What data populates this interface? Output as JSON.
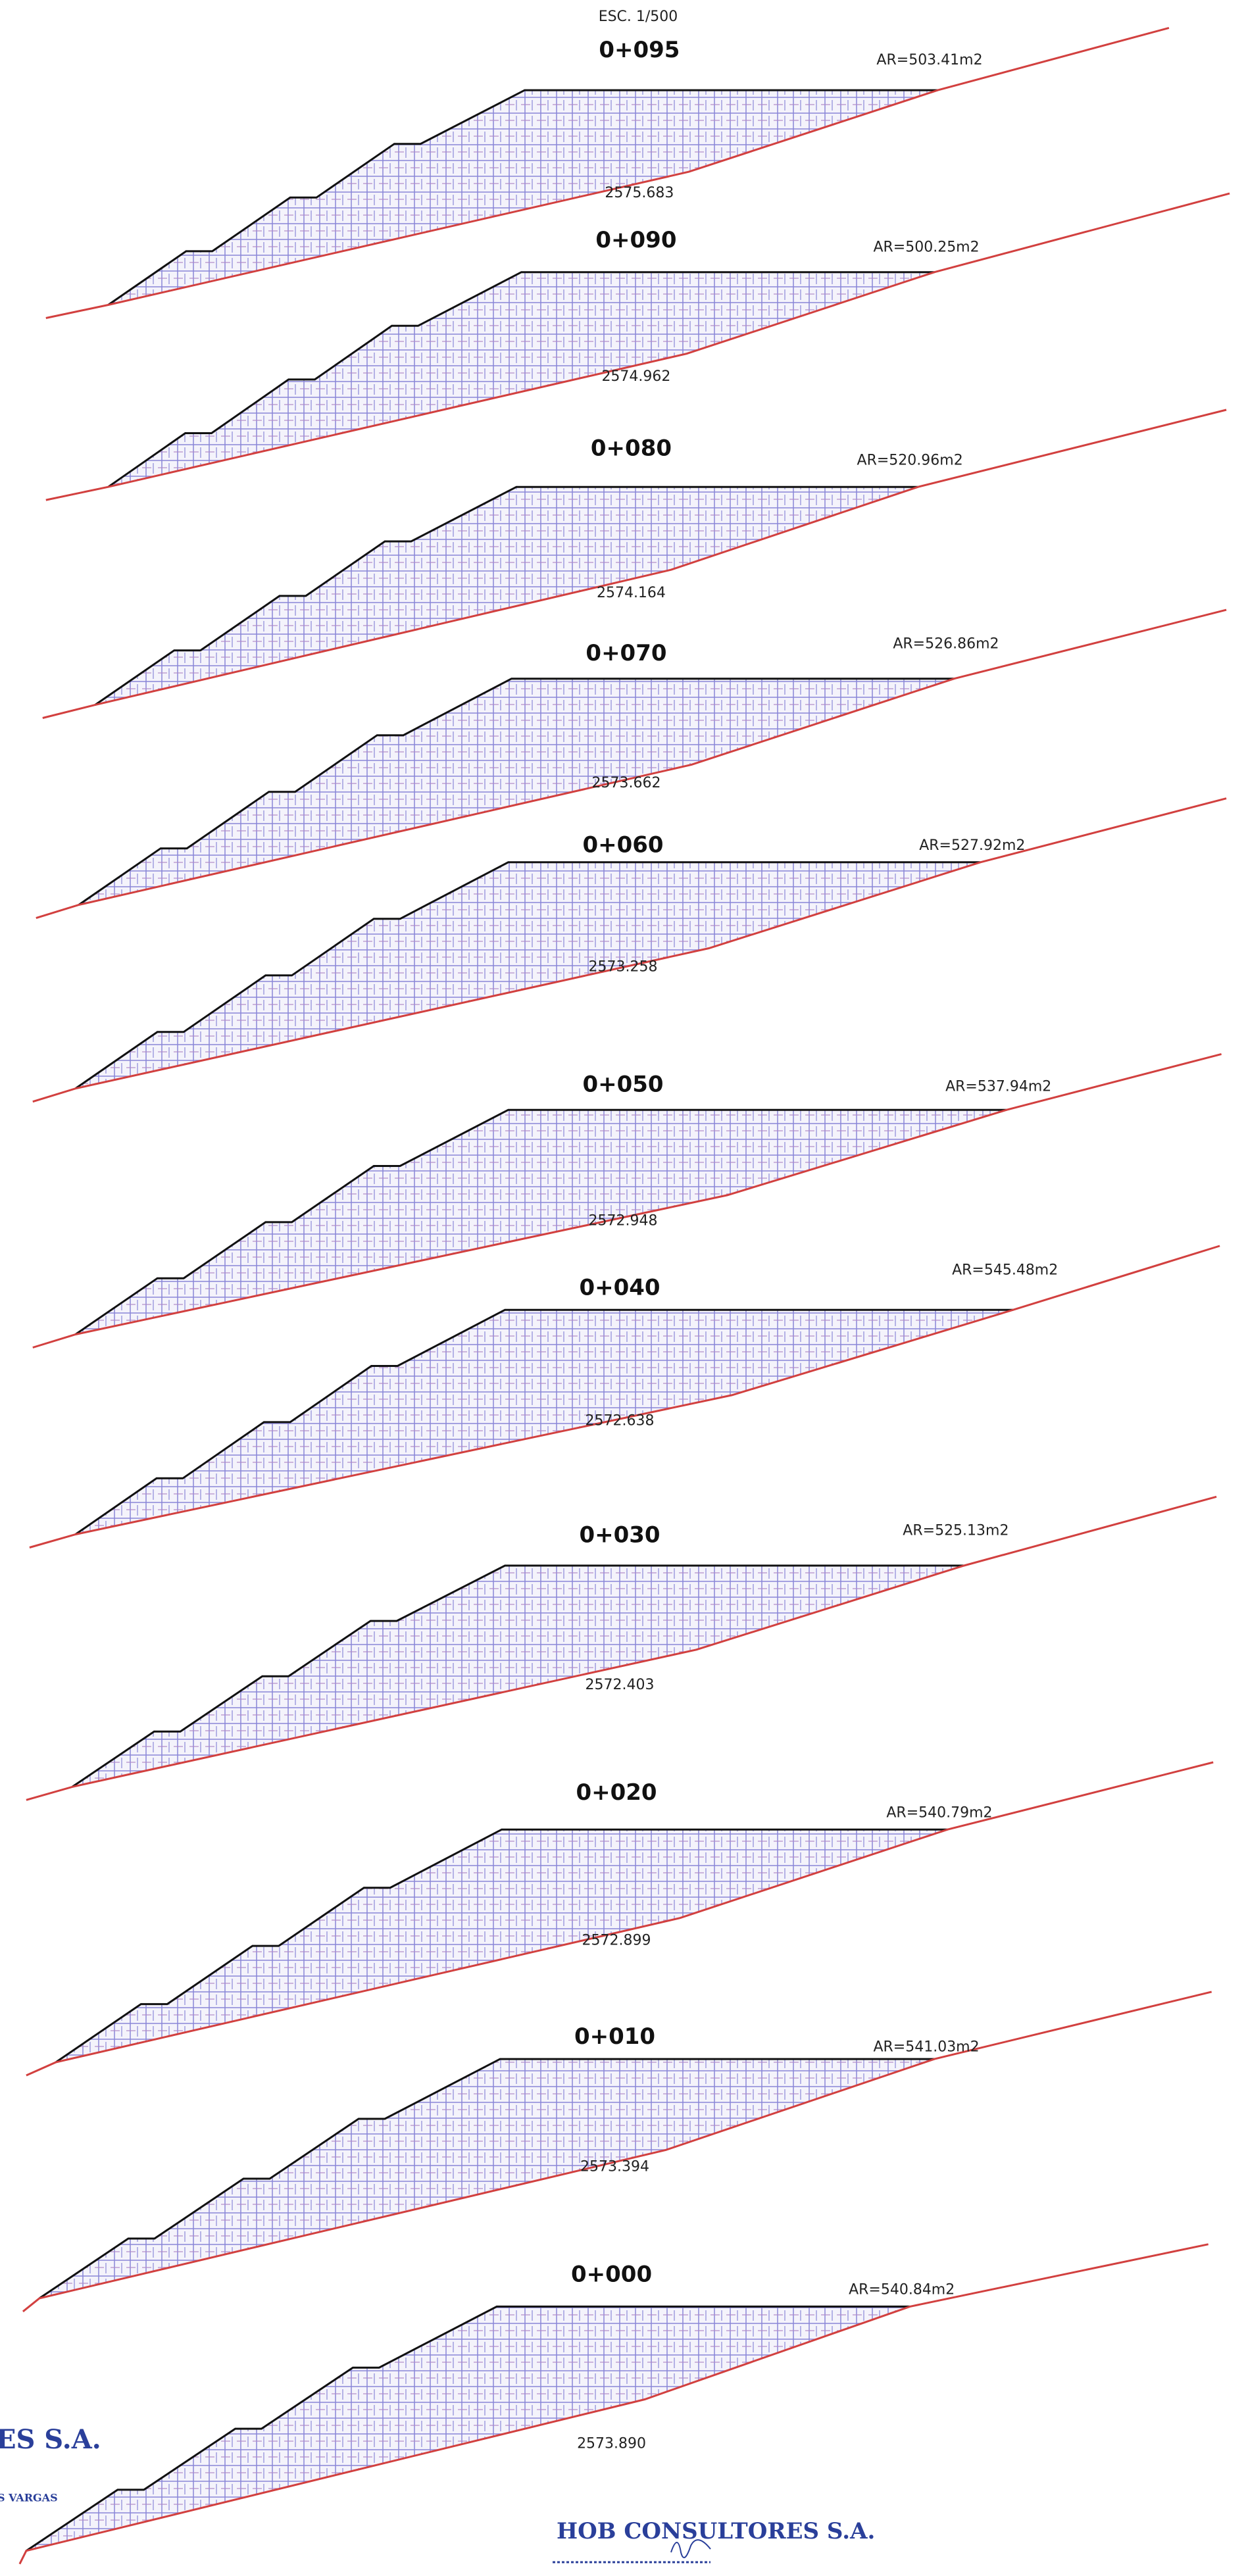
{
  "header": {
    "scale": "ESC. 1/500"
  },
  "sections": [
    {
      "station": "0+095",
      "area": "AR=503.41m2",
      "elevation": "2575.683"
    },
    {
      "station": "0+090",
      "area": "AR=500.25m2",
      "elevation": "2574.962"
    },
    {
      "station": "0+080",
      "area": "AR=520.96m2",
      "elevation": "2574.164"
    },
    {
      "station": "0+070",
      "area": "AR=526.86m2",
      "elevation": "2573.662"
    },
    {
      "station": "0+060",
      "area": "AR=527.92m2",
      "elevation": "2573.258"
    },
    {
      "station": "0+050",
      "area": "AR=537.94m2",
      "elevation": "2572.948"
    },
    {
      "station": "0+040",
      "area": "AR=545.48m2",
      "elevation": "2572.638"
    },
    {
      "station": "0+030",
      "area": "AR=525.13m2",
      "elevation": "2572.403"
    },
    {
      "station": "0+020",
      "area": "AR=540.79m2",
      "elevation": "2572.899"
    },
    {
      "station": "0+010",
      "area": "AR=541.03m2",
      "elevation": "2573.394"
    },
    {
      "station": "0+000",
      "area": "AR=540.84m2",
      "elevation": "2573.890"
    }
  ],
  "stamps": {
    "left_company": "ES S.A.",
    "left_name": "S VARGAS",
    "company": "HOB CONSULTORES S.A."
  }
}
